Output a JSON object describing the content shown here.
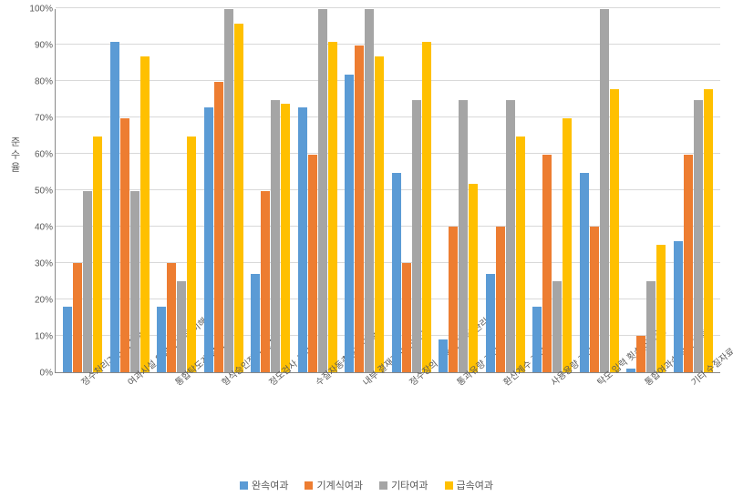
{
  "chart": {
    "type": "grouped-bar",
    "y_axis_title": "준수율",
    "ylim": [
      0,
      100
    ],
    "ytick_step": 10,
    "ytick_suffix": "%",
    "gridline_color": "#d9d9d9",
    "background_color": "#ffffff",
    "axis_color": "#888888",
    "tick_label_fontsize": 10,
    "axis_title_fontsize": 11,
    "series": [
      {
        "name": "완속여과",
        "color": "#5b9bd5"
      },
      {
        "name": "기계식여과",
        "color": "#ed7d31"
      },
      {
        "name": "기타여과",
        "color": "#a5a5a5"
      },
      {
        "name": "급속여과",
        "color": "#ffc000"
      }
    ],
    "categories": [
      {
        "label": "정수처리기준 숙지여부",
        "values": [
          18,
          30,
          50,
          65
        ]
      },
      {
        "label": "여과시설 운영에 대한 이해",
        "values": [
          91,
          70,
          50,
          87
        ]
      },
      {
        "label": "통합탁도계 설치",
        "values": [
          18,
          30,
          25,
          65
        ]
      },
      {
        "label": "형식승인장비 설치",
        "values": [
          73,
          80,
          100,
          96
        ]
      },
      {
        "label": "정도검사 실시",
        "values": [
          27,
          50,
          75,
          74
        ]
      },
      {
        "label": "수질자동측정기 검교정",
        "values": [
          73,
          60,
          100,
          91
        ]
      },
      {
        "label": "내부 결재후 WIIS보고",
        "values": [
          82,
          90,
          100,
          87
        ]
      },
      {
        "label": "정수장의 소독능 직접 관리",
        "values": [
          55,
          30,
          75,
          91
        ]
      },
      {
        "label": "통과유량 관리",
        "values": [
          9,
          40,
          75,
          52
        ]
      },
      {
        "label": "환산계수 관리",
        "values": [
          27,
          40,
          75,
          65
        ]
      },
      {
        "label": "사용용량 관리",
        "values": [
          18,
          60,
          25,
          70
        ]
      },
      {
        "label": "탁도 입력 횟수(6회/일)",
        "values": [
          55,
          40,
          100,
          78
        ]
      },
      {
        "label": "통합여과수 탁도 입력",
        "values": [
          1,
          10,
          25,
          35
        ]
      },
      {
        "label": "기타 수질자료 입력",
        "values": [
          36,
          60,
          75,
          78
        ]
      }
    ],
    "legend_position": "bottom"
  }
}
